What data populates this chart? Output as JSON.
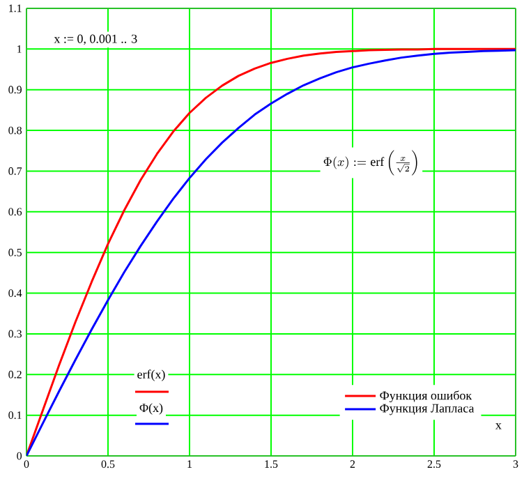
{
  "chart_data": {
    "type": "line",
    "xlabel": "x",
    "x": [
      0,
      0.1,
      0.2,
      0.3,
      0.4,
      0.5,
      0.6,
      0.7,
      0.8,
      0.9,
      1.0,
      1.1,
      1.2,
      1.3,
      1.4,
      1.5,
      1.6,
      1.7,
      1.8,
      1.9,
      2.0,
      2.1,
      2.2,
      2.3,
      2.4,
      2.5,
      2.6,
      2.7,
      2.8,
      2.9,
      3.0
    ],
    "series": [
      {
        "name": "Функция ошибок",
        "color": "#ff0000",
        "values": [
          0,
          0.112,
          0.223,
          0.329,
          0.428,
          0.521,
          0.604,
          0.678,
          0.742,
          0.797,
          0.843,
          0.88,
          0.91,
          0.934,
          0.952,
          0.966,
          0.976,
          0.984,
          0.989,
          0.993,
          0.995,
          0.997,
          0.998,
          0.999,
          0.999,
          1.0,
          1.0,
          1.0,
          1.0,
          1.0,
          1.0
        ]
      },
      {
        "name": "Функция Лапласа",
        "color": "#0000ff",
        "values": [
          0,
          0.08,
          0.159,
          0.236,
          0.311,
          0.383,
          0.452,
          0.516,
          0.576,
          0.632,
          0.683,
          0.729,
          0.77,
          0.806,
          0.839,
          0.866,
          0.89,
          0.911,
          0.928,
          0.943,
          0.955,
          0.964,
          0.972,
          0.979,
          0.984,
          0.988,
          0.991,
          0.993,
          0.995,
          0.996,
          0.997
        ]
      }
    ],
    "xlim": [
      0,
      3
    ],
    "ylim": [
      0,
      1.1
    ],
    "xticks": [
      0,
      0.5,
      1,
      1.5,
      2,
      2.5,
      3
    ],
    "yticks": [
      0,
      0.1,
      0.2,
      0.3,
      0.4,
      0.5,
      0.6,
      0.7,
      0.8,
      0.9,
      1,
      1.1
    ],
    "grid": true,
    "legend": "bottom right",
    "marker": "none",
    "line_style": "solid",
    "annotations": [
      "x := 0, 0.001 .. 3",
      "\\Phi(x) := \\mathrm{erf}\\left(\\frac{x}{\\sqrt{2}}\\right)",
      "erf(x)",
      "Φ(x)"
    ]
  }
}
